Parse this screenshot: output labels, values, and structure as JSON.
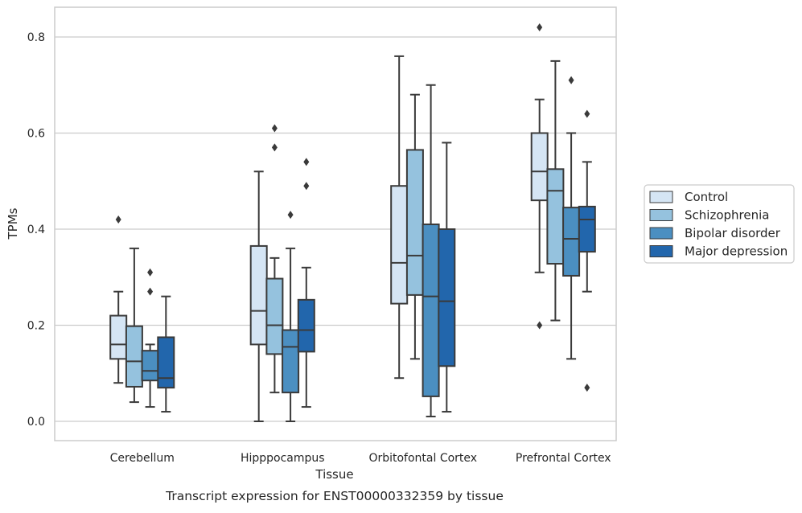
{
  "caption": "Transcript expression for ENST00000332359 by tissue",
  "colors": {
    "Control": "#d5e5f4",
    "Schizophrenia": "#95c2de",
    "Bipolar disorder": "#4b8fc1",
    "Major depression": "#2266ac",
    "box_edge": "#3a3a3a",
    "grid": "#cccccc",
    "frame": "#cccccc"
  },
  "chart_data": {
    "type": "box",
    "title": "",
    "xlabel": "Tissue",
    "ylabel": "TPMs",
    "ylim": [
      -0.04,
      0.86
    ],
    "yticks": [
      0.0,
      0.2,
      0.4,
      0.6,
      0.8
    ],
    "ytick_labels": [
      "0.0",
      "0.2",
      "0.4",
      "0.6",
      "0.8"
    ],
    "grid": "horizontal",
    "legend_position": "right",
    "categories": [
      "Cerebellum",
      "Hipppocampus",
      "Orbitofontal Cortex",
      "Prefrontal Cortex"
    ],
    "series": [
      {
        "name": "Control",
        "boxes": [
          {
            "whislo": 0.08,
            "q1": 0.13,
            "med": 0.16,
            "q3": 0.22,
            "whishi": 0.27,
            "fliers": [
              0.42
            ]
          },
          {
            "whislo": 0.0,
            "q1": 0.16,
            "med": 0.23,
            "q3": 0.365,
            "whishi": 0.52,
            "fliers": []
          },
          {
            "whislo": 0.09,
            "q1": 0.245,
            "med": 0.33,
            "q3": 0.49,
            "whishi": 0.76,
            "fliers": []
          },
          {
            "whislo": 0.31,
            "q1": 0.46,
            "med": 0.52,
            "q3": 0.6,
            "whishi": 0.67,
            "fliers": [
              0.2,
              0.82
            ]
          }
        ]
      },
      {
        "name": "Schizophrenia",
        "boxes": [
          {
            "whislo": 0.04,
            "q1": 0.072,
            "med": 0.125,
            "q3": 0.198,
            "whishi": 0.36,
            "fliers": []
          },
          {
            "whislo": 0.06,
            "q1": 0.14,
            "med": 0.2,
            "q3": 0.297,
            "whishi": 0.34,
            "fliers": [
              0.57,
              0.61
            ]
          },
          {
            "whislo": 0.13,
            "q1": 0.263,
            "med": 0.345,
            "q3": 0.565,
            "whishi": 0.68,
            "fliers": []
          },
          {
            "whislo": 0.21,
            "q1": 0.328,
            "med": 0.48,
            "q3": 0.525,
            "whishi": 0.75,
            "fliers": []
          }
        ]
      },
      {
        "name": "Bipolar disorder",
        "boxes": [
          {
            "whislo": 0.03,
            "q1": 0.085,
            "med": 0.105,
            "q3": 0.147,
            "whishi": 0.16,
            "fliers": [
              0.27,
              0.31
            ]
          },
          {
            "whislo": 0.0,
            "q1": 0.06,
            "med": 0.155,
            "q3": 0.19,
            "whishi": 0.36,
            "fliers": [
              0.43
            ]
          },
          {
            "whislo": 0.01,
            "q1": 0.052,
            "med": 0.26,
            "q3": 0.41,
            "whishi": 0.7,
            "fliers": []
          },
          {
            "whislo": 0.13,
            "q1": 0.303,
            "med": 0.38,
            "q3": 0.445,
            "whishi": 0.6,
            "fliers": [
              0.71
            ]
          }
        ]
      },
      {
        "name": "Major depression",
        "boxes": [
          {
            "whislo": 0.02,
            "q1": 0.07,
            "med": 0.09,
            "q3": 0.175,
            "whishi": 0.26,
            "fliers": []
          },
          {
            "whislo": 0.03,
            "q1": 0.145,
            "med": 0.19,
            "q3": 0.253,
            "whishi": 0.32,
            "fliers": [
              0.49,
              0.54
            ]
          },
          {
            "whislo": 0.02,
            "q1": 0.115,
            "med": 0.25,
            "q3": 0.4,
            "whishi": 0.58,
            "fliers": []
          },
          {
            "whislo": 0.27,
            "q1": 0.353,
            "med": 0.42,
            "q3": 0.447,
            "whishi": 0.54,
            "fliers": [
              0.07,
              0.64
            ]
          }
        ]
      }
    ]
  }
}
